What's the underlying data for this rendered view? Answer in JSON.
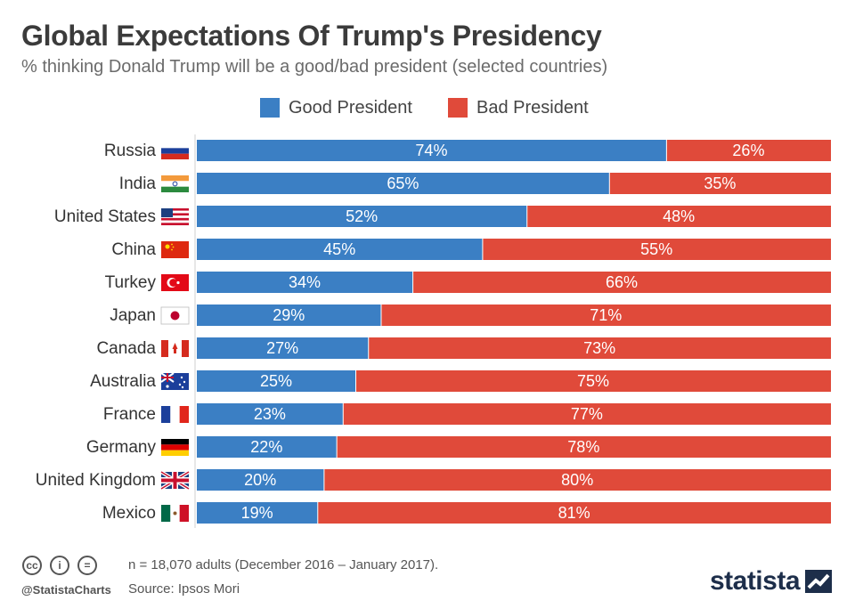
{
  "title": "Global Expectations Of Trump's Presidency",
  "subtitle": "% thinking Donald Trump will be a good/bad president (selected countries)",
  "legend": {
    "good": "Good President",
    "bad": "Bad President"
  },
  "colors": {
    "good": "#3b7fc4",
    "bad": "#e04a3a",
    "text": "#333333"
  },
  "footer": {
    "note": "n = 18,070 adults (December 2016 – January 2017).",
    "source": "Source: Ipsos Mori",
    "handle": "@StatistaCharts",
    "brand": "statista"
  },
  "chart_data": {
    "type": "bar",
    "orientation": "horizontal",
    "stacked": true,
    "categories": [
      "Russia",
      "India",
      "United States",
      "China",
      "Turkey",
      "Japan",
      "Canada",
      "Australia",
      "France",
      "Germany",
      "United Kingdom",
      "Mexico"
    ],
    "series": [
      {
        "name": "Good President",
        "values": [
          74,
          65,
          52,
          45,
          34,
          29,
          27,
          25,
          23,
          22,
          20,
          19
        ]
      },
      {
        "name": "Bad President",
        "values": [
          26,
          35,
          48,
          55,
          66,
          71,
          73,
          75,
          77,
          78,
          80,
          81
        ]
      }
    ],
    "flags": [
      "russia-flag-icon",
      "india-flag-icon",
      "usa-flag-icon",
      "china-flag-icon",
      "turkey-flag-icon",
      "japan-flag-icon",
      "canada-flag-icon",
      "australia-flag-icon",
      "france-flag-icon",
      "germany-flag-icon",
      "uk-flag-icon",
      "mexico-flag-icon"
    ],
    "xlim": [
      0,
      100
    ],
    "value_suffix": "%"
  }
}
